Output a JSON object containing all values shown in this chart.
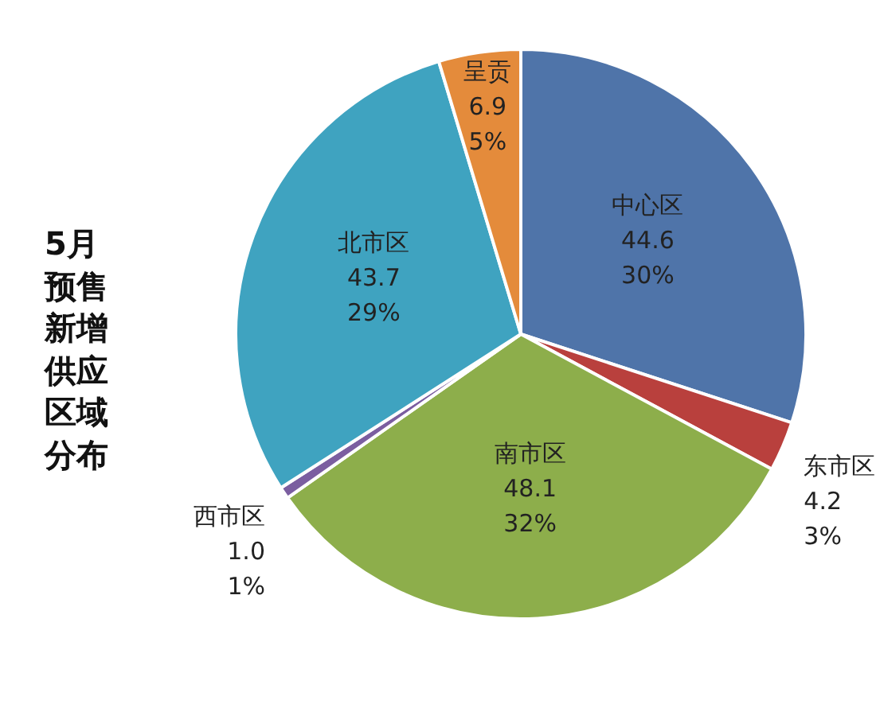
{
  "chart_data": {
    "type": "pie",
    "title": "5月预售新增供应区域分布",
    "categories": [
      "中心区",
      "东市区",
      "南市区",
      "西市区",
      "北市区",
      "呈贡"
    ],
    "values": [
      44.6,
      4.2,
      48.1,
      1.0,
      43.7,
      6.9
    ],
    "colors": [
      "#4f74a9",
      "#b9403d",
      "#8dae4b",
      "#7b5ea0",
      "#3fa3c0",
      "#e48b3b"
    ],
    "value_labels": [
      "44.6\n30%",
      "4.2\n3%",
      "48.1\n32%",
      "1.0\n1%",
      "43.7\n29%",
      "6.9\n5%"
    ],
    "legend": false
  }
}
